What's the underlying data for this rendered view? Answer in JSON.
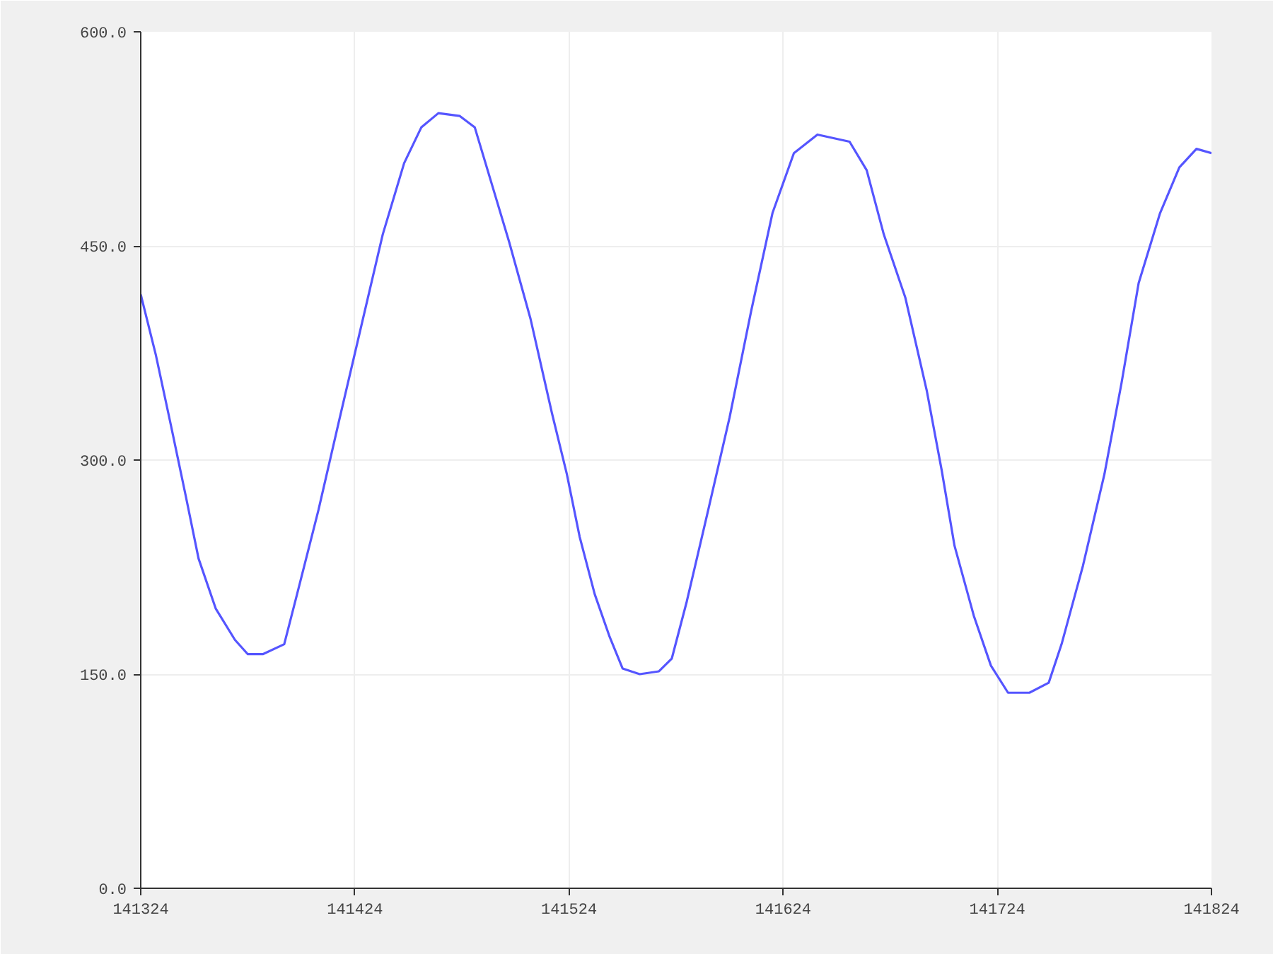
{
  "chart_data": {
    "type": "line",
    "x": [
      141324,
      141331,
      141338,
      141345,
      141351,
      141359,
      141368,
      141374,
      141381,
      141391,
      141397,
      141407,
      141417,
      141427,
      141437,
      141447,
      141455,
      141463,
      141473,
      141480,
      141488,
      141496,
      141506,
      141516,
      141523,
      141529,
      141536,
      141543,
      141549,
      141557,
      141566,
      141572,
      141579,
      141589,
      141599,
      141609,
      141619,
      141629,
      141640,
      141655,
      141663,
      141671,
      141681,
      141691,
      141698,
      141704,
      141713,
      141721,
      141729,
      141739,
      141748,
      141754,
      141764,
      141774,
      141782,
      141790,
      141800,
      141809,
      141817,
      141824
    ],
    "series": [
      {
        "color": "#5555ff",
        "values": [
          416,
          374,
          325,
          275,
          231,
          196,
          174,
          164,
          164,
          171,
          206,
          265,
          330,
          394,
          458,
          508,
          533,
          543,
          541,
          533,
          493,
          453,
          399,
          333,
          290,
          246,
          206,
          176,
          154,
          150,
          152,
          161,
          201,
          265,
          330,
          404,
          473,
          515,
          528,
          523,
          503,
          458,
          414,
          349,
          293,
          240,
          191,
          156,
          137,
          137,
          144,
          171,
          226,
          290,
          354,
          424,
          473,
          505,
          518,
          515
        ]
      }
    ],
    "xlim": [
      141324,
      141824
    ],
    "ylim": [
      0,
      600
    ],
    "xticks": [
      141324,
      141424,
      141524,
      141624,
      141724,
      141824
    ],
    "yticks": [
      {
        "value": 0,
        "label": "0.0"
      },
      {
        "value": 150,
        "label": "150.0"
      },
      {
        "value": 300,
        "label": "300.0"
      },
      {
        "value": 450,
        "label": "450.0"
      },
      {
        "value": 600,
        "label": "600.0"
      }
    ],
    "grid": true,
    "line_style": "solid"
  }
}
